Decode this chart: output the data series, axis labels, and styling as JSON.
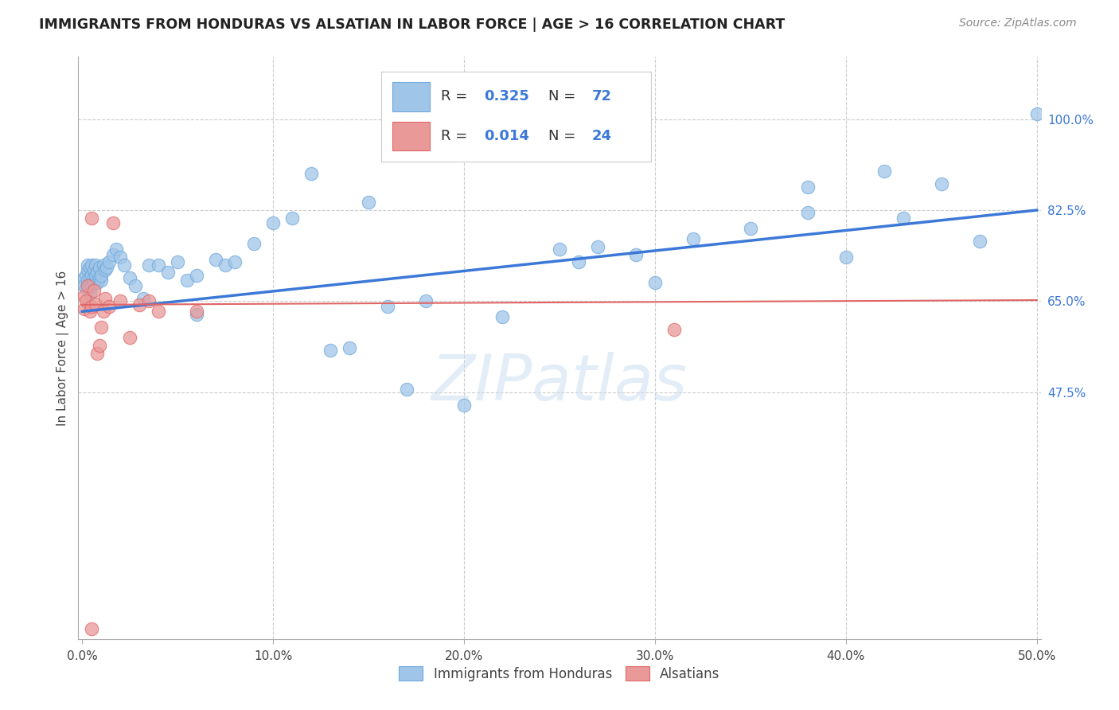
{
  "title": "IMMIGRANTS FROM HONDURAS VS ALSATIAN IN LABOR FORCE | AGE > 16 CORRELATION CHART",
  "source": "Source: ZipAtlas.com",
  "ylabel": "In Labor Force | Age > 16",
  "xlim": [
    -0.002,
    0.502
  ],
  "ylim": [
    0.0,
    1.12
  ],
  "xticks": [
    0.0,
    0.1,
    0.2,
    0.3,
    0.4,
    0.5
  ],
  "xticklabels": [
    "0.0%",
    "10.0%",
    "20.0%",
    "30.0%",
    "40.0%",
    "50.0%"
  ],
  "yticks_right": [
    0.475,
    0.65,
    0.825,
    1.0
  ],
  "yticklabels_right": [
    "47.5%",
    "65.0%",
    "82.5%",
    "100.0%"
  ],
  "legend_r1": "0.325",
  "legend_n1": "72",
  "legend_r2": "0.014",
  "legend_n2": "24",
  "blue_fill": "#9fc5e8",
  "pink_fill": "#ea9999",
  "blue_edge": "#6fa8dc",
  "pink_edge": "#e06666",
  "blue_line_color": "#3c78d8",
  "pink_line_color": "#e06666",
  "text_color": "#434343",
  "blue_label_color": "#3c78d8",
  "watermark": "ZIPatlas",
  "background_color": "#ffffff",
  "grid_color": "#cccccc",
  "blue_scatter_x": [
    0.001,
    0.001,
    0.002,
    0.002,
    0.003,
    0.003,
    0.003,
    0.004,
    0.004,
    0.004,
    0.005,
    0.005,
    0.005,
    0.006,
    0.006,
    0.006,
    0.007,
    0.007,
    0.008,
    0.008,
    0.009,
    0.009,
    0.01,
    0.01,
    0.011,
    0.012,
    0.013,
    0.014,
    0.016,
    0.018,
    0.02,
    0.022,
    0.025,
    0.028,
    0.032,
    0.035,
    0.04,
    0.045,
    0.05,
    0.055,
    0.06,
    0.07,
    0.075,
    0.08,
    0.09,
    0.1,
    0.11,
    0.12,
    0.14,
    0.16,
    0.18,
    0.2,
    0.22,
    0.25,
    0.27,
    0.29,
    0.32,
    0.35,
    0.38,
    0.42,
    0.45,
    0.47,
    0.5,
    0.15,
    0.26,
    0.3,
    0.06,
    0.13,
    0.17,
    0.4,
    0.43,
    0.38
  ],
  "blue_scatter_y": [
    0.695,
    0.68,
    0.7,
    0.675,
    0.71,
    0.69,
    0.72,
    0.695,
    0.665,
    0.715,
    0.7,
    0.68,
    0.72,
    0.695,
    0.71,
    0.685,
    0.7,
    0.72,
    0.685,
    0.705,
    0.695,
    0.715,
    0.69,
    0.7,
    0.72,
    0.71,
    0.715,
    0.725,
    0.74,
    0.75,
    0.735,
    0.72,
    0.695,
    0.68,
    0.655,
    0.72,
    0.72,
    0.705,
    0.725,
    0.69,
    0.7,
    0.73,
    0.72,
    0.725,
    0.76,
    0.8,
    0.81,
    0.895,
    0.56,
    0.64,
    0.65,
    0.45,
    0.62,
    0.75,
    0.755,
    0.74,
    0.77,
    0.79,
    0.82,
    0.9,
    0.875,
    0.765,
    1.01,
    0.84,
    0.725,
    0.685,
    0.625,
    0.555,
    0.48,
    0.735,
    0.81,
    0.87
  ],
  "pink_scatter_x": [
    0.001,
    0.001,
    0.002,
    0.003,
    0.004,
    0.005,
    0.005,
    0.006,
    0.007,
    0.008,
    0.009,
    0.01,
    0.011,
    0.012,
    0.014,
    0.016,
    0.02,
    0.025,
    0.03,
    0.035,
    0.04,
    0.06,
    0.31,
    0.005
  ],
  "pink_scatter_y": [
    0.635,
    0.66,
    0.65,
    0.68,
    0.63,
    0.64,
    0.81,
    0.67,
    0.645,
    0.55,
    0.565,
    0.6,
    0.63,
    0.655,
    0.64,
    0.8,
    0.65,
    0.58,
    0.643,
    0.65,
    0.63,
    0.63,
    0.595,
    0.02
  ],
  "blue_trend_x": [
    0.0,
    0.5
  ],
  "blue_trend_y": [
    0.63,
    0.825
  ],
  "pink_trend_x": [
    0.0,
    0.5
  ],
  "pink_trend_y": [
    0.643,
    0.652
  ]
}
